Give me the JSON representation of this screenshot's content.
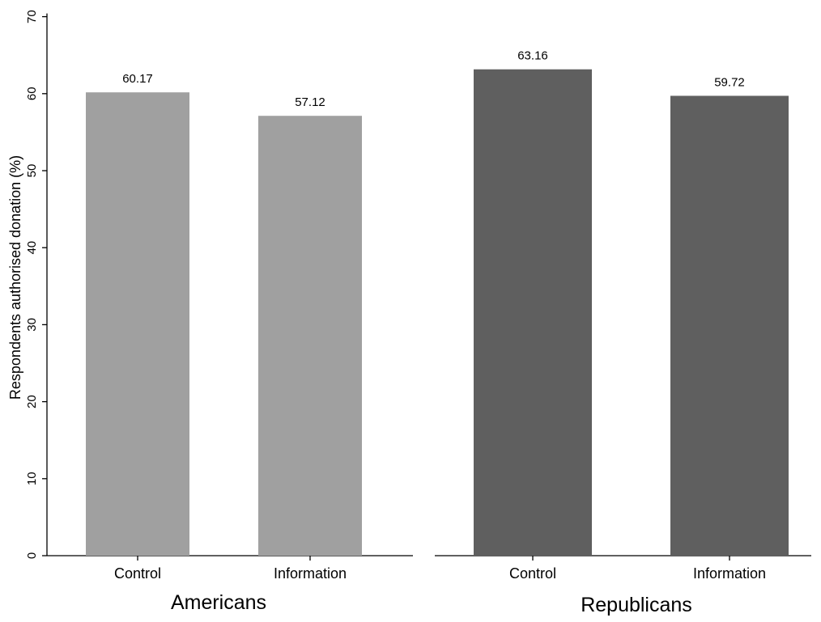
{
  "chart_data": {
    "type": "bar",
    "ylabel": "Respondents authorised donation (%)",
    "ylim": [
      0,
      70
    ],
    "yticks": [
      0,
      10,
      20,
      30,
      40,
      50,
      60,
      70
    ],
    "grid": false,
    "panels": [
      {
        "group": "Americans",
        "categories": [
          "Control",
          "Information"
        ],
        "values": [
          60.17,
          57.12
        ],
        "value_labels": [
          "60.17",
          "57.12"
        ],
        "color": "#a0a0a0"
      },
      {
        "group": "Republicans",
        "categories": [
          "Control",
          "Information"
        ],
        "values": [
          63.16,
          59.72
        ],
        "value_labels": [
          "63.16",
          "59.72"
        ],
        "color": "#5f5f5f"
      }
    ]
  }
}
